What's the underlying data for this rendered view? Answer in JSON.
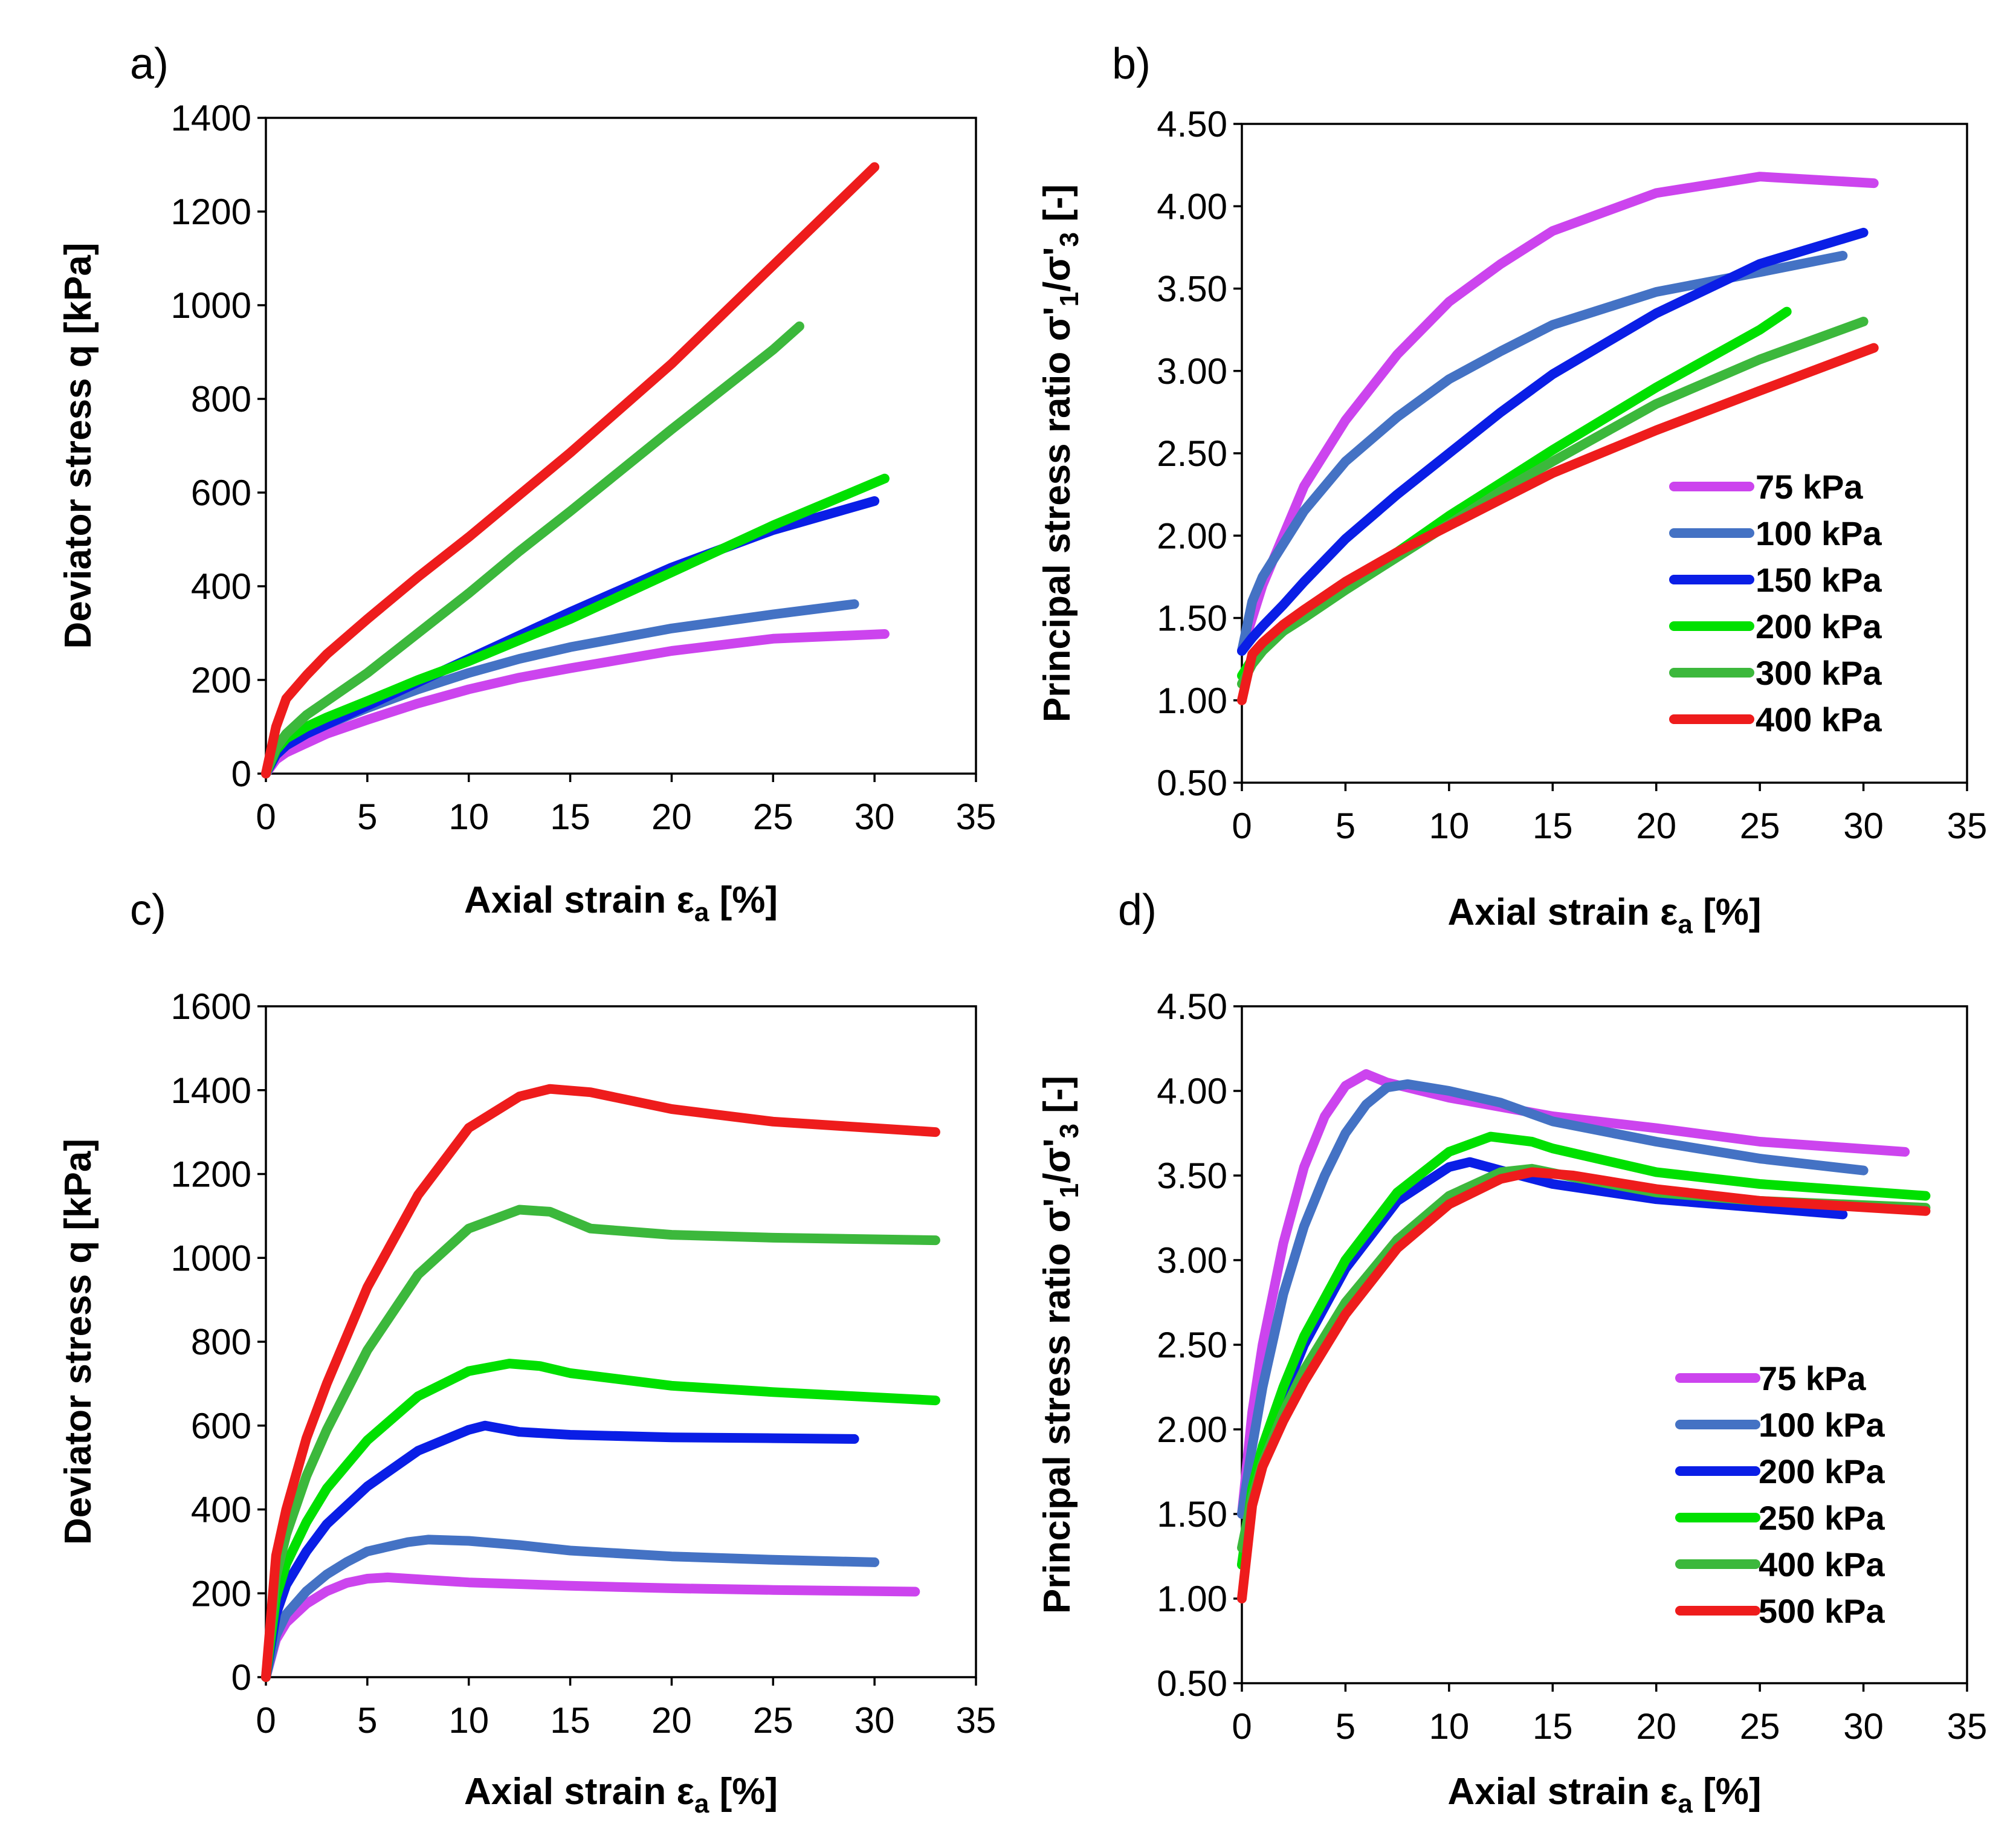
{
  "chart_data": [
    {
      "type": "line",
      "panel_label": "a)",
      "xlabel": "Axial strain ε",
      "xlabel_sub": "a",
      "xlabel_unit": " [%]",
      "ylabel": "Deviator stress q [kPa]",
      "xlim": [
        0,
        35
      ],
      "ylim": [
        0,
        1400
      ],
      "xticks": [
        0,
        5,
        10,
        15,
        20,
        25,
        30,
        35
      ],
      "yticks": [
        0,
        200,
        400,
        600,
        800,
        1000,
        1200,
        1400
      ],
      "ytick_labels": [
        "0",
        "200",
        "400",
        "600",
        "800",
        "1000",
        "1200",
        "1400"
      ],
      "legend": false,
      "series": [
        {
          "name": "75 kPa",
          "color": "#CC44EE",
          "x": [
            0,
            0.5,
            1,
            2,
            3,
            5,
            7.5,
            10,
            12.5,
            15,
            20,
            25,
            30.5
          ],
          "y": [
            0,
            30,
            45,
            65,
            85,
            115,
            150,
            180,
            205,
            225,
            262,
            288,
            298
          ]
        },
        {
          "name": "100 kPa",
          "color": "#4472C4",
          "x": [
            0,
            0.5,
            1,
            2,
            3,
            5,
            7.5,
            10,
            12.5,
            15,
            20,
            25,
            29
          ],
          "y": [
            0,
            40,
            60,
            85,
            105,
            140,
            180,
            215,
            245,
            270,
            310,
            340,
            362
          ]
        },
        {
          "name": "150 kPa",
          "color": "#0A1EE6",
          "x": [
            0,
            0.5,
            1,
            2,
            3,
            5,
            7.5,
            10,
            12.5,
            15,
            20,
            25,
            30
          ],
          "y": [
            0,
            40,
            60,
            85,
            105,
            145,
            195,
            245,
            295,
            345,
            440,
            520,
            582
          ]
        },
        {
          "name": "200 kPa",
          "color": "#00E000",
          "x": [
            0,
            0.5,
            1,
            2,
            3,
            5,
            7.5,
            10,
            12.5,
            15,
            20,
            25,
            30.5
          ],
          "y": [
            0,
            50,
            75,
            100,
            120,
            155,
            200,
            240,
            285,
            330,
            430,
            530,
            630
          ]
        },
        {
          "name": "300 kPa",
          "color": "#3CB83C",
          "x": [
            0,
            0.5,
            1,
            2,
            3,
            5,
            7.5,
            10,
            12.5,
            15,
            20,
            25,
            26.3
          ],
          "y": [
            0,
            55,
            85,
            125,
            155,
            215,
            300,
            385,
            475,
            560,
            735,
            905,
            955
          ]
        },
        {
          "name": "400 kPa",
          "color": "#EE1C1C",
          "x": [
            0,
            0.5,
            1,
            2,
            3,
            5,
            7.5,
            10,
            12.5,
            15,
            20,
            25,
            30
          ],
          "y": [
            0,
            100,
            160,
            210,
            255,
            330,
            420,
            505,
            595,
            685,
            875,
            1085,
            1295
          ]
        }
      ]
    },
    {
      "type": "line",
      "panel_label": "b)",
      "xlabel": "Axial strain ε",
      "xlabel_sub": "a",
      "xlabel_unit": "  [%]",
      "ylabel": "Principal stress ratio σ'",
      "ylabel_sub1": "1",
      "ylabel_mid": "/σ'",
      "ylabel_sub2": "3",
      "ylabel_unit": " [-]",
      "xlim": [
        0,
        35
      ],
      "ylim": [
        0.5,
        4.5
      ],
      "xticks": [
        0,
        5,
        10,
        15,
        20,
        25,
        30,
        35
      ],
      "yticks": [
        0.5,
        1.0,
        1.5,
        2.0,
        2.5,
        3.0,
        3.5,
        4.0,
        4.5
      ],
      "ytick_labels": [
        "0.50",
        "1.00",
        "1.50",
        "2.00",
        "2.50",
        "3.00",
        "3.50",
        "4.00",
        "4.50"
      ],
      "legend": true,
      "series": [
        {
          "name": "75 kPa",
          "color": "#CC44EE",
          "x": [
            0,
            0.5,
            1,
            2,
            3,
            5,
            7.5,
            10,
            12.5,
            15,
            20,
            25,
            30.5
          ],
          "y": [
            1.3,
            1.5,
            1.7,
            2.0,
            2.3,
            2.7,
            3.1,
            3.42,
            3.65,
            3.85,
            4.08,
            4.18,
            4.14
          ]
        },
        {
          "name": "100 kPa",
          "color": "#4472C4",
          "x": [
            0,
            0.5,
            1,
            2,
            3,
            5,
            7.5,
            10,
            12.5,
            15,
            20,
            25,
            29
          ],
          "y": [
            1.3,
            1.6,
            1.75,
            1.95,
            2.15,
            2.45,
            2.72,
            2.95,
            3.12,
            3.28,
            3.48,
            3.6,
            3.7
          ]
        },
        {
          "name": "150 kPa",
          "color": "#0A1EE6",
          "x": [
            0,
            0.5,
            1,
            2,
            3,
            5,
            7.5,
            10,
            12.5,
            15,
            20,
            25,
            30
          ],
          "y": [
            1.3,
            1.38,
            1.45,
            1.58,
            1.72,
            1.98,
            2.25,
            2.5,
            2.75,
            2.98,
            3.35,
            3.65,
            3.84
          ]
        },
        {
          "name": "200 kPa",
          "color": "#00E000",
          "x": [
            0,
            0.5,
            1,
            2,
            3,
            5,
            7.5,
            10,
            12.5,
            15,
            20,
            25,
            26.3
          ],
          "y": [
            1.15,
            1.25,
            1.32,
            1.42,
            1.52,
            1.7,
            1.9,
            2.12,
            2.32,
            2.52,
            2.9,
            3.25,
            3.36
          ]
        },
        {
          "name": "300 kPa",
          "color": "#3CB83C",
          "x": [
            0,
            0.5,
            1,
            2,
            3,
            5,
            7.5,
            10,
            12.5,
            15,
            20,
            25,
            30
          ],
          "y": [
            1.1,
            1.22,
            1.3,
            1.42,
            1.5,
            1.67,
            1.87,
            2.07,
            2.27,
            2.45,
            2.8,
            3.07,
            3.3
          ]
        },
        {
          "name": "400 kPa",
          "color": "#EE1C1C",
          "x": [
            0,
            0.5,
            1,
            2,
            3,
            5,
            7.5,
            10,
            12.5,
            15,
            20,
            25,
            30.5
          ],
          "y": [
            1.0,
            1.28,
            1.35,
            1.46,
            1.55,
            1.72,
            1.9,
            2.06,
            2.22,
            2.38,
            2.64,
            2.88,
            3.14
          ]
        }
      ]
    },
    {
      "type": "line",
      "panel_label": "c)",
      "xlabel": "Axial strain ε",
      "xlabel_sub": "a",
      "xlabel_unit": " [%]",
      "ylabel": "Deviator stress q [kPa]",
      "xlim": [
        0,
        35
      ],
      "ylim": [
        0,
        1600
      ],
      "xticks": [
        0,
        5,
        10,
        15,
        20,
        25,
        30,
        35
      ],
      "yticks": [
        0,
        200,
        400,
        600,
        800,
        1000,
        1200,
        1400,
        1600
      ],
      "ytick_labels": [
        "0",
        "200",
        "400",
        "600",
        "800",
        "1000",
        "1200",
        "1400",
        "1600"
      ],
      "legend": false,
      "series": [
        {
          "name": "75 kPa",
          "color": "#CC44EE",
          "x": [
            0,
            0.5,
            1,
            2,
            3,
            4,
            5,
            6,
            8,
            10,
            15,
            20,
            25,
            32
          ],
          "y": [
            0,
            90,
            130,
            175,
            205,
            225,
            235,
            238,
            232,
            226,
            218,
            212,
            208,
            204
          ]
        },
        {
          "name": "100 kPa",
          "color": "#4472C4",
          "x": [
            0,
            0.5,
            1,
            2,
            3,
            4,
            5,
            7,
            8,
            10,
            12.5,
            15,
            20,
            25,
            30
          ],
          "y": [
            0,
            100,
            150,
            205,
            245,
            275,
            300,
            322,
            328,
            325,
            315,
            302,
            288,
            280,
            274
          ]
        },
        {
          "name": "200 kPa",
          "color": "#0A1EE6",
          "x": [
            0,
            0.5,
            1,
            2,
            3,
            5,
            7.5,
            10,
            10.8,
            12.5,
            15,
            20,
            25,
            29
          ],
          "y": [
            0,
            150,
            220,
            300,
            365,
            455,
            540,
            590,
            600,
            585,
            578,
            572,
            570,
            568
          ]
        },
        {
          "name": "250 kPa",
          "color": "#00E000",
          "x": [
            0,
            0.5,
            1,
            2,
            3,
            5,
            7.5,
            10,
            12,
            13.5,
            15,
            20,
            25,
            33
          ],
          "y": [
            0,
            190,
            270,
            370,
            450,
            565,
            670,
            730,
            748,
            742,
            725,
            695,
            680,
            660
          ]
        },
        {
          "name": "400 kPa",
          "color": "#3CB83C",
          "x": [
            0,
            0.5,
            1,
            2,
            3,
            5,
            7.5,
            10,
            12.5,
            14,
            16,
            20,
            25,
            33
          ],
          "y": [
            0,
            240,
            340,
            480,
            590,
            780,
            960,
            1070,
            1115,
            1110,
            1070,
            1055,
            1048,
            1042
          ]
        },
        {
          "name": "500 kPa",
          "color": "#EE1C1C",
          "x": [
            0,
            0.5,
            1,
            2,
            3,
            5,
            7.5,
            10,
            12.5,
            14,
            16,
            20,
            25,
            33
          ],
          "y": [
            0,
            290,
            400,
            570,
            700,
            930,
            1150,
            1310,
            1385,
            1403,
            1395,
            1355,
            1325,
            1300
          ]
        }
      ]
    },
    {
      "type": "line",
      "panel_label": "d)",
      "xlabel": "Axial strain ε",
      "xlabel_sub": "a",
      "xlabel_unit": " [%]",
      "ylabel": "Principal stress ratio σ'",
      "ylabel_sub1": "1",
      "ylabel_mid": "/σ'",
      "ylabel_sub2": "3",
      "ylabel_unit": " [-]",
      "xlim": [
        0,
        35
      ],
      "ylim": [
        0.5,
        4.5
      ],
      "xticks": [
        0,
        5,
        10,
        15,
        20,
        25,
        30,
        35
      ],
      "yticks": [
        0.5,
        1.0,
        1.5,
        2.0,
        2.5,
        3.0,
        3.5,
        4.0,
        4.5
      ],
      "ytick_labels": [
        "0.50",
        "1.00",
        "1.50",
        "2.00",
        "2.50",
        "3.00",
        "3.50",
        "4.00",
        "4.50"
      ],
      "legend": true,
      "series": [
        {
          "name": "75 kPa",
          "color": "#CC44EE",
          "x": [
            0,
            0.5,
            1,
            2,
            3,
            4,
            5,
            6,
            7,
            10,
            15,
            20,
            25,
            32
          ],
          "y": [
            1.5,
            2.1,
            2.5,
            3.1,
            3.55,
            3.85,
            4.03,
            4.1,
            4.05,
            3.96,
            3.85,
            3.78,
            3.7,
            3.64
          ]
        },
        {
          "name": "100 kPa",
          "color": "#4472C4",
          "x": [
            0,
            0.5,
            1,
            2,
            3,
            4,
            5,
            6,
            7,
            8,
            10,
            12.5,
            15,
            20,
            25,
            30
          ],
          "y": [
            1.5,
            1.9,
            2.25,
            2.8,
            3.2,
            3.5,
            3.75,
            3.92,
            4.02,
            4.04,
            4.0,
            3.93,
            3.82,
            3.7,
            3.6,
            3.53
          ]
        },
        {
          "name": "200 kPa",
          "color": "#0A1EE6",
          "x": [
            0,
            0.5,
            1,
            2,
            3,
            5,
            7.5,
            10,
            11,
            12.5,
            15,
            20,
            25,
            29
          ],
          "y": [
            1.2,
            1.6,
            1.85,
            2.2,
            2.5,
            2.95,
            3.35,
            3.55,
            3.58,
            3.53,
            3.45,
            3.36,
            3.31,
            3.27
          ]
        },
        {
          "name": "250 kPa",
          "color": "#00E000",
          "x": [
            0,
            0.5,
            1,
            2,
            3,
            5,
            7.5,
            10,
            12,
            14,
            15,
            20,
            25,
            33
          ],
          "y": [
            1.2,
            1.65,
            1.9,
            2.25,
            2.55,
            3.0,
            3.4,
            3.64,
            3.73,
            3.7,
            3.66,
            3.52,
            3.45,
            3.38
          ]
        },
        {
          "name": "400 kPa",
          "color": "#3CB83C",
          "x": [
            0,
            0.5,
            1,
            2,
            3,
            5,
            7.5,
            10,
            12.5,
            14,
            16,
            20,
            25,
            33
          ],
          "y": [
            1.3,
            1.6,
            1.8,
            2.1,
            2.35,
            2.75,
            3.12,
            3.38,
            3.52,
            3.54,
            3.49,
            3.4,
            3.35,
            3.31
          ]
        },
        {
          "name": "500 kPa",
          "color": "#EE1C1C",
          "x": [
            0,
            0.5,
            1,
            2,
            3,
            5,
            7.5,
            10,
            12.5,
            14,
            16,
            20,
            25,
            33
          ],
          "y": [
            1.0,
            1.55,
            1.78,
            2.05,
            2.28,
            2.68,
            3.07,
            3.33,
            3.48,
            3.52,
            3.5,
            3.42,
            3.35,
            3.29
          ]
        }
      ]
    }
  ]
}
